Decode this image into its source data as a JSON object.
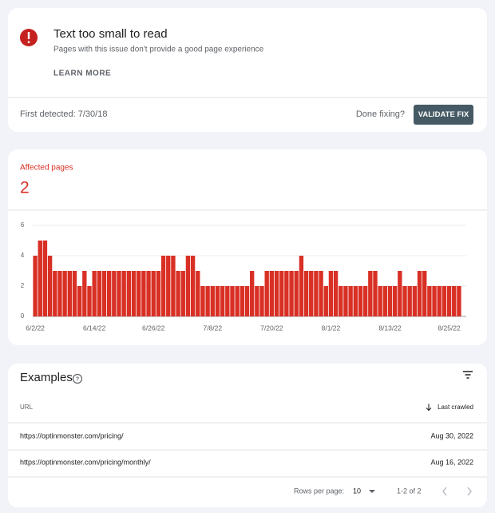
{
  "issue": {
    "title": "Text too small to read",
    "description": "Pages with this issue don't provide a good page experience",
    "learn_more": "LEARN MORE",
    "first_detected": "First detected: 7/30/18",
    "done_fixing": "Done fixing?",
    "button": "VALIDATE FIX"
  },
  "summary": {
    "label": "Affected pages",
    "value": 2
  },
  "chart_data": {
    "type": "bar",
    "color": "#d93025",
    "categories": [
      "6/2/22",
      null,
      null,
      null,
      null,
      null,
      null,
      null,
      null,
      null,
      null,
      null,
      "6/14/22",
      null,
      null,
      null,
      null,
      null,
      null,
      null,
      null,
      null,
      null,
      null,
      "6/26/22",
      null,
      null,
      null,
      null,
      null,
      null,
      null,
      null,
      null,
      null,
      null,
      "7/8/22",
      null,
      null,
      null,
      null,
      null,
      null,
      null,
      null,
      null,
      null,
      null,
      "7/20/22",
      null,
      null,
      null,
      null,
      null,
      null,
      null,
      null,
      null,
      null,
      null,
      "8/1/22",
      null,
      null,
      null,
      null,
      null,
      null,
      null,
      null,
      null,
      null,
      null,
      "8/13/22",
      null,
      null,
      null,
      null,
      null,
      null,
      null,
      null,
      null,
      null,
      null,
      "8/25/22",
      null,
      null
    ],
    "values": [
      4,
      5,
      5,
      4,
      3,
      3,
      3,
      3,
      3,
      2,
      3,
      2,
      3,
      3,
      3,
      3,
      3,
      3,
      3,
      3,
      3,
      3,
      3,
      3,
      3,
      3,
      4,
      4,
      4,
      3,
      3,
      4,
      4,
      3,
      2,
      2,
      2,
      2,
      2,
      2,
      2,
      2,
      2,
      2,
      3,
      2,
      2,
      3,
      3,
      3,
      3,
      3,
      3,
      3,
      4,
      3,
      3,
      3,
      3,
      2,
      3,
      3,
      2,
      2,
      2,
      2,
      2,
      2,
      3,
      3,
      2,
      2,
      2,
      2,
      3,
      2,
      2,
      2,
      3,
      3,
      2,
      2,
      2,
      2,
      2,
      2,
      2
    ],
    "ylim": [
      0,
      6
    ],
    "yticks": [
      0,
      2,
      4,
      6
    ],
    "grid": true
  },
  "examples": {
    "title": "Examples",
    "columns": [
      "URL",
      "Last crawled"
    ],
    "rows": [
      [
        "https://optinmonster.com/pricing/",
        "Aug 30, 2022"
      ],
      [
        "https://optinmonster.com/pricing/monthly/",
        "Aug 16, 2022"
      ]
    ],
    "pagination": {
      "rows_per_page_label": "Rows per page:",
      "rows_per_page": 10,
      "range": "1-2 of 2"
    }
  }
}
